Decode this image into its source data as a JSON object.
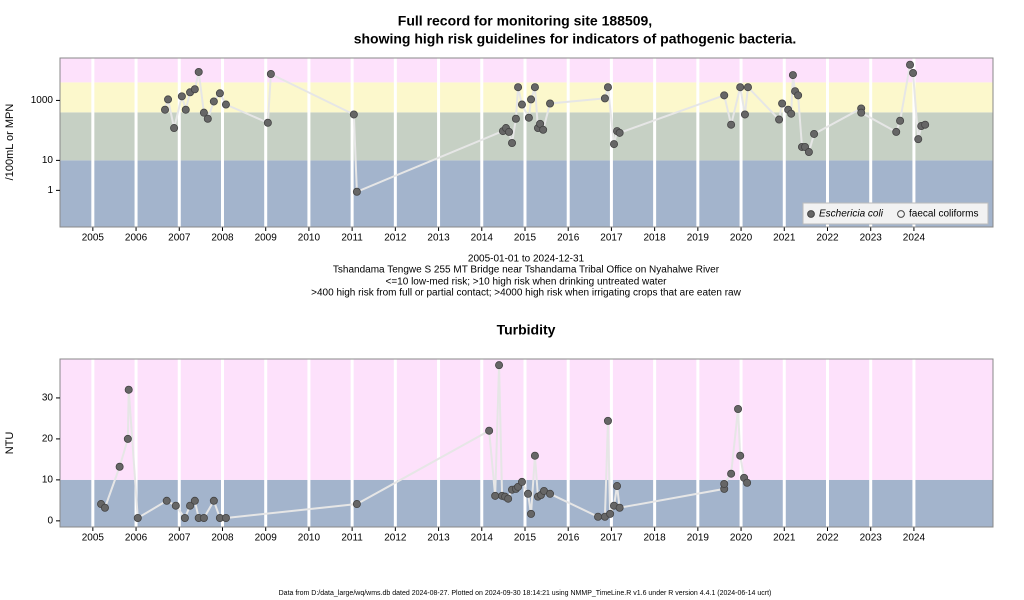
{
  "chart_data": [
    {
      "type": "scatter",
      "title": [
        "Full record for monitoring site 188509,",
        "showing high risk guidelines for indicators of pathogenic bacteria."
      ],
      "ylabel": "/100mL or MPN",
      "log_scale": true,
      "xlim": [
        2004.24,
        2025.83
      ],
      "xticks": [
        2005,
        2006,
        2007,
        2008,
        2009,
        2010,
        2011,
        2012,
        2013,
        2014,
        2015,
        2016,
        2017,
        2018,
        2019,
        2020,
        2021,
        2022,
        2023,
        2024
      ],
      "ylim": [
        0.06,
        26000
      ],
      "yticks": [
        1,
        10,
        1000
      ],
      "thresholds": [
        10,
        400,
        4000
      ],
      "band_colors": [
        "#a3b4cc",
        "#c6d0c4",
        "#fcf8cc",
        "#fde1fb"
      ],
      "legend": "bottom-right",
      "series": [
        {
          "name": "Eschericia coli",
          "color": "#666666",
          "marker": "filled",
          "x": [
            2006.67,
            2006.74,
            2006.88,
            2007.06,
            2007.15,
            2007.25,
            2007.36,
            2007.45,
            2007.57,
            2007.66,
            2007.8,
            2007.94,
            2008.08,
            2009.05,
            2009.12,
            2011.04,
            2011.11,
            2014.49,
            2014.56,
            2014.63,
            2014.7,
            2014.79,
            2014.84,
            2014.93,
            2015.09,
            2015.14,
            2015.23,
            2015.3,
            2015.35,
            2015.42,
            2015.58,
            2016.85,
            2016.92,
            2017.06,
            2017.13,
            2017.19,
            2019.61,
            2019.77,
            2019.98,
            2020.09,
            2020.16,
            2020.88,
            2020.95,
            2021.09,
            2021.16,
            2021.2,
            2021.25,
            2021.32,
            2021.41,
            2021.48,
            2021.57,
            2021.69,
            2022.78,
            2022.78,
            2023.59,
            2023.68,
            2023.91,
            2023.98,
            2024.1,
            2024.17,
            2024.26
          ],
          "values": [
            490,
            1080,
            120,
            1370,
            490,
            1870,
            2360,
            8900,
            390,
            245,
            925,
            1730,
            730,
            180,
            7600,
            340,
            0.9,
            95,
            120,
            89,
            38,
            245,
            2760,
            730,
            265,
            1080,
            2760,
            120,
            165,
            105,
            790,
            1170,
            2760,
            35,
            95,
            83,
            1480,
            155,
            2760,
            340,
            2760,
            230,
            790,
            490,
            360,
            7000,
            2030,
            1480,
            28,
            28,
            19,
            76,
            540,
            390,
            89,
            210,
            15500,
            8200,
            51,
            140,
            155
          ]
        },
        {
          "name": "faecal coliforms",
          "color": "#666666",
          "marker": "open",
          "x": [],
          "values": []
        }
      ],
      "notes": [
        "2005-01-01 to 2024-12-31",
        "Tshandama Tengwe S 255 MT Bridge near Tshandama Tribal Office on Nyahalwe River",
        "<=10 low-med risk; >10 high risk when drinking untreated water",
        ">400 high risk from full or partial contact; >4000 high risk when irrigating crops that are eaten raw"
      ]
    },
    {
      "type": "scatter",
      "title": "Turbidity",
      "ylabel": "NTU",
      "log_scale": false,
      "xlim": [
        2004.24,
        2025.83
      ],
      "xticks": [
        2005,
        2006,
        2007,
        2008,
        2009,
        2010,
        2011,
        2012,
        2013,
        2014,
        2015,
        2016,
        2017,
        2018,
        2019,
        2020,
        2021,
        2022,
        2023,
        2024
      ],
      "ylim": [
        -1.5,
        39.5
      ],
      "yticks": [
        0,
        10,
        20,
        30
      ],
      "thresholds": [
        10
      ],
      "band_colors": [
        "#a3b4cc",
        "#fde1fb"
      ],
      "color": "#666666",
      "x": [
        2005.19,
        2005.28,
        2005.62,
        2005.81,
        2005.83,
        2006.04,
        2006.71,
        2006.92,
        2007.13,
        2007.25,
        2007.36,
        2007.45,
        2007.57,
        2007.8,
        2007.94,
        2008.08,
        2011.11,
        2014.17,
        2014.31,
        2014.4,
        2014.47,
        2014.54,
        2014.61,
        2014.7,
        2014.79,
        2014.84,
        2014.93,
        2015.07,
        2015.14,
        2015.23,
        2015.3,
        2015.37,
        2015.44,
        2015.58,
        2016.69,
        2016.85,
        2016.92,
        2016.97,
        2017.06,
        2017.13,
        2017.19,
        2019.61,
        2019.61,
        2019.77,
        2019.93,
        2019.98,
        2020.07,
        2020.14
      ],
      "values": [
        4.1,
        3.2,
        13.2,
        20,
        32,
        0.7,
        4.9,
        3.7,
        0.7,
        3.7,
        4.9,
        0.7,
        0.7,
        4.9,
        0.7,
        0.7,
        4.1,
        22,
        6.1,
        38,
        6.1,
        5.9,
        5.4,
        7.6,
        7.8,
        8.3,
        9.5,
        6.6,
        1.7,
        15.9,
        5.9,
        6.3,
        7.3,
        6.6,
        1,
        1,
        24.4,
        1.7,
        3.7,
        8.5,
        3.2,
        7.8,
        9,
        11.5,
        27.3,
        15.9,
        10.5,
        9.3
      ],
      "footnote": "Data from D:/data_large/wq/wms.db dated 2024-08-27. Plotted on 2024-09-30 18:14:21 using NMMP_TimeLine.R v1.6 under R version 4.4.1 (2024-06-14 ucrt)"
    }
  ]
}
